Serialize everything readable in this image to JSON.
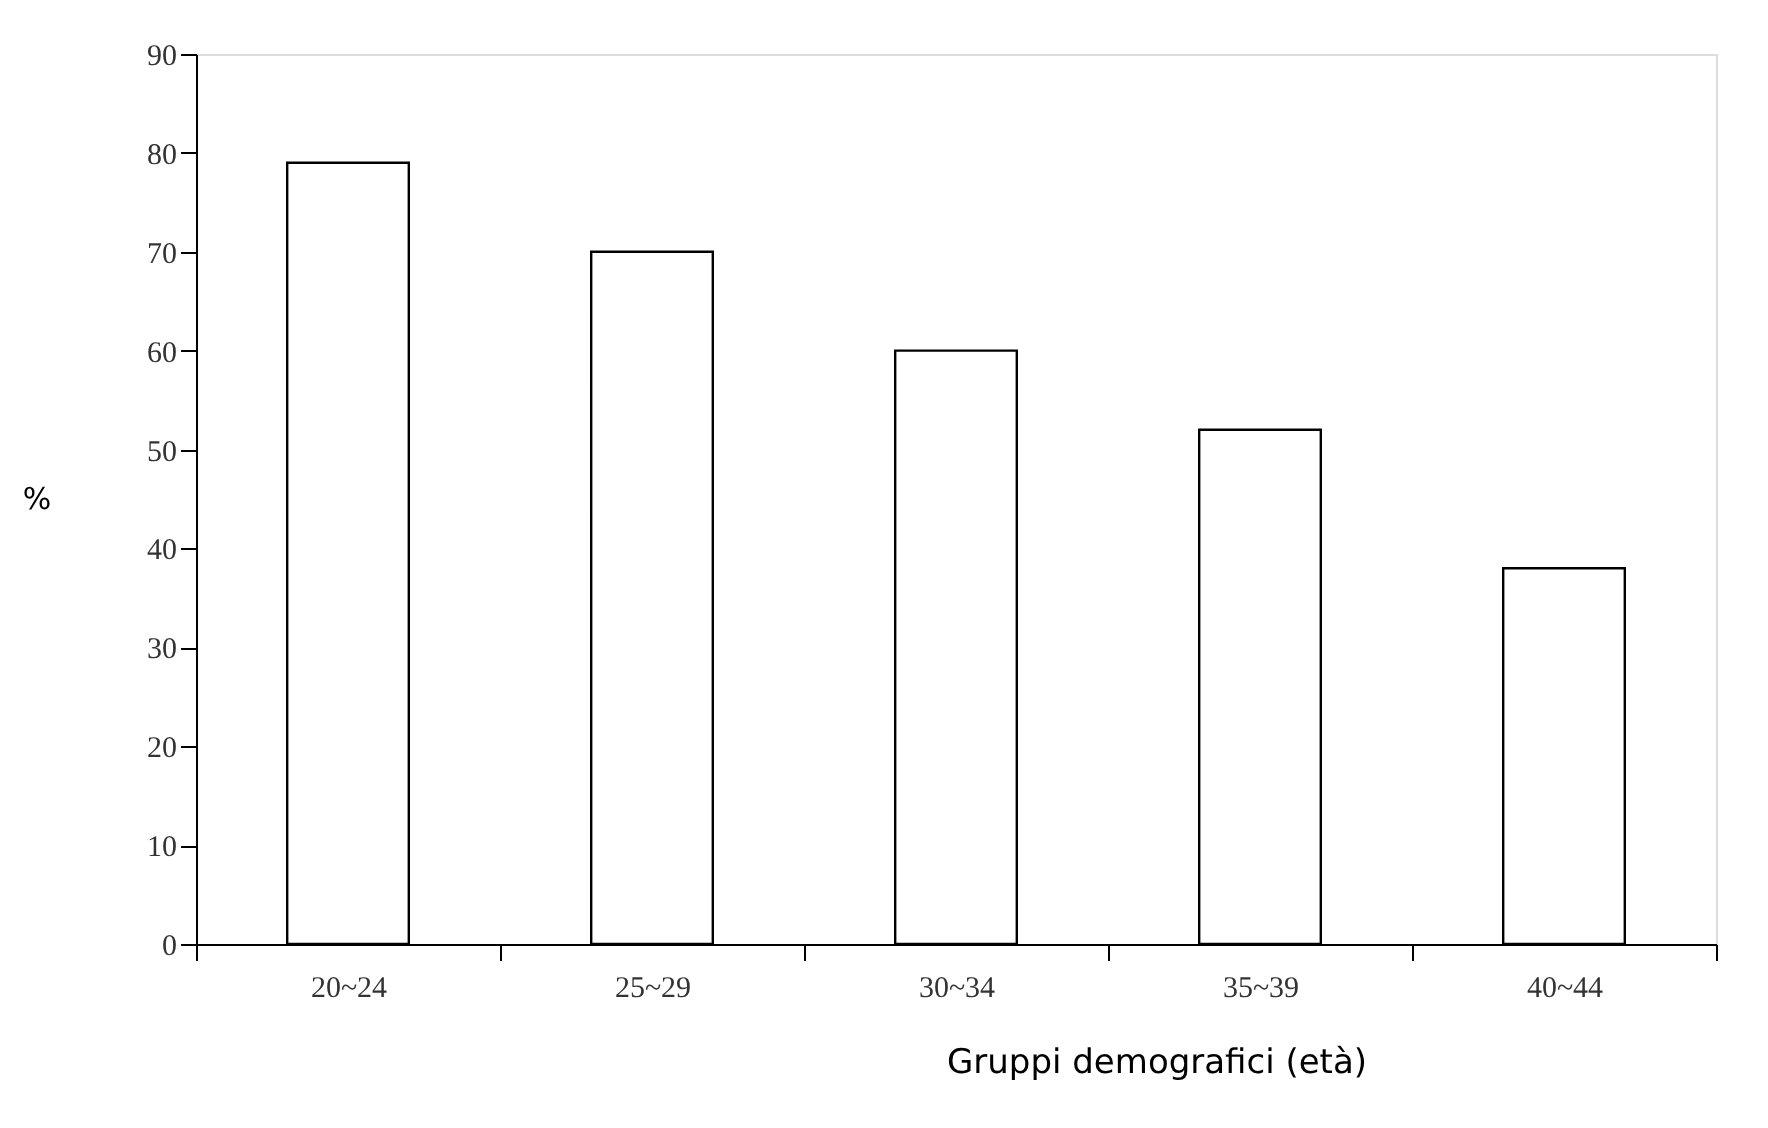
{
  "chart_data": {
    "type": "bar",
    "xlabel": "Gruppi demografici (età)",
    "ylabel": "%",
    "categories": [
      "20~24",
      "25~29",
      "30~34",
      "35~39",
      "40~44"
    ],
    "values": [
      79,
      70,
      60,
      52,
      38
    ],
    "color": "#ffffff",
    "ylim": [
      0,
      90
    ],
    "yticks": [
      0,
      10,
      20,
      30,
      40,
      50,
      60,
      70,
      80,
      90
    ],
    "grid": false
  }
}
